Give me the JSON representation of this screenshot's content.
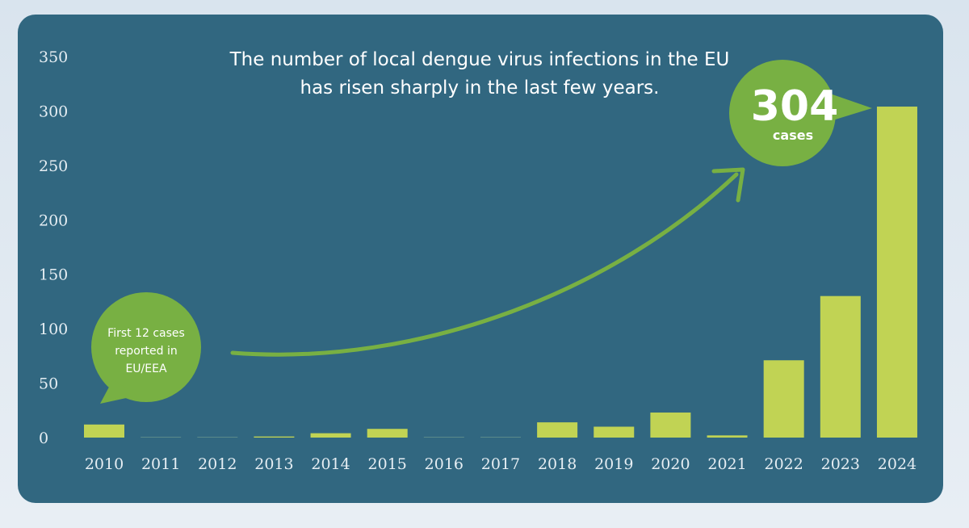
{
  "chart_data": {
    "type": "bar",
    "title_lines": [
      "The number of local dengue virus infections in the EU",
      "has risen sharply in the last few years."
    ],
    "categories": [
      "2010",
      "2011",
      "2012",
      "2013",
      "2014",
      "2015",
      "2016",
      "2017",
      "2018",
      "2019",
      "2020",
      "2021",
      "2022",
      "2023",
      "2024"
    ],
    "values": [
      12,
      0,
      0,
      1,
      4,
      8,
      0,
      0,
      14,
      10,
      23,
      2,
      71,
      130,
      304
    ],
    "ylim": [
      0,
      350
    ],
    "yticks": [
      "0",
      "50",
      "100",
      "150",
      "200",
      "250",
      "300",
      "350"
    ],
    "xlabel": "",
    "ylabel": "",
    "grid": false,
    "annotations": {
      "highlight_value": "304",
      "highlight_unit": "cases",
      "first_note_lines": [
        "First 12 cases",
        "reported in",
        "EU/EEA"
      ]
    }
  },
  "colors": {
    "panel": "#316780",
    "bar": "#c1d354",
    "bubble": "#78b043",
    "arrow": "#78b043",
    "text": "#ffffff"
  }
}
